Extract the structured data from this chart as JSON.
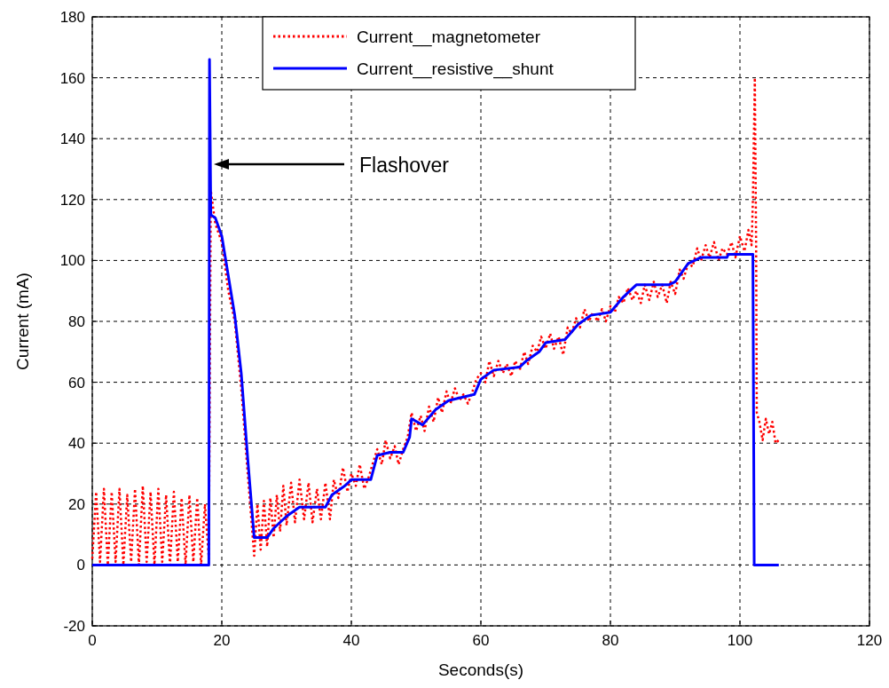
{
  "chart_data": {
    "type": "line",
    "xlabel": "Seconds(s)",
    "ylabel": "Current (mA)",
    "xlim": [
      0,
      120
    ],
    "ylim": [
      -20,
      180
    ],
    "xticks": [
      0,
      20,
      40,
      60,
      80,
      100,
      120
    ],
    "yticks": [
      -20,
      0,
      20,
      40,
      60,
      80,
      100,
      120,
      140,
      160,
      180
    ],
    "grid": true,
    "legend": "top",
    "marker": "none",
    "annotations": [
      "Flashover"
    ],
    "series": [
      {
        "name": "Current__magnetometer",
        "color": "#ff0000",
        "line_style": "dotted",
        "x": [
          0,
          0.6,
          1.2,
          1.8,
          2.4,
          3,
          3.6,
          4.2,
          4.8,
          5.4,
          6,
          6.6,
          7.2,
          7.8,
          8.4,
          9,
          9.6,
          10.2,
          10.8,
          11.4,
          12,
          12.6,
          13.2,
          13.8,
          14.4,
          15,
          15.6,
          16.2,
          16.8,
          17.4,
          18,
          18.3,
          19,
          20,
          21,
          22,
          23,
          24,
          25,
          25.5,
          26,
          26.5,
          27,
          27.5,
          28,
          28.5,
          29,
          29.5,
          30,
          30.7,
          31.3,
          32,
          32.7,
          33.4,
          34,
          34.7,
          35.3,
          36,
          36.7,
          37.3,
          38,
          38.7,
          39.4,
          40,
          40.7,
          41.3,
          42,
          42.7,
          43.4,
          44,
          44.7,
          45.3,
          46,
          46.7,
          47.3,
          48,
          48.7,
          49.3,
          50,
          50.7,
          51.3,
          52,
          52.7,
          53.4,
          54,
          54.7,
          55.3,
          56,
          56.7,
          57.3,
          58,
          58.7,
          59.3,
          60,
          60.7,
          61.3,
          62,
          62.7,
          63.4,
          64,
          64.7,
          65.3,
          66,
          66.7,
          67.3,
          68,
          68.7,
          69.3,
          70,
          70.7,
          71.3,
          72,
          72.7,
          73.4,
          74,
          74.7,
          75.3,
          76,
          76.7,
          77.3,
          78,
          78.7,
          79.3,
          80,
          80.7,
          81.3,
          82,
          82.7,
          83.4,
          84,
          84.7,
          85.3,
          86,
          86.7,
          87.3,
          88,
          88.7,
          89.3,
          90,
          90.7,
          91.3,
          92,
          92.7,
          93.4,
          94,
          94.7,
          95.3,
          96,
          96.7,
          97.3,
          98,
          98.7,
          99.3,
          100,
          100.7,
          101.3,
          101.8,
          102,
          102.3,
          102.5,
          102.6,
          103,
          103.5,
          104,
          104.5,
          105,
          105.5,
          106
        ],
        "values": [
          2,
          24,
          1,
          25,
          0,
          24,
          1,
          25,
          0,
          23,
          1,
          25,
          0,
          26,
          1,
          24,
          0,
          25,
          1,
          23,
          0,
          24,
          1,
          22,
          0,
          23,
          1,
          22,
          0,
          20,
          2,
          123,
          112,
          106,
          90,
          80,
          58,
          30,
          3,
          20,
          5,
          21,
          6,
          22,
          9,
          23,
          11,
          26,
          13,
          27,
          14,
          28,
          15,
          27,
          14,
          25,
          15,
          27,
          15,
          28,
          22,
          32,
          24,
          30,
          26,
          33,
          25,
          29,
          34,
          38,
          33,
          41,
          35,
          39,
          33,
          38,
          42,
          50,
          44,
          49,
          44,
          52,
          47,
          55,
          50,
          57,
          53,
          58,
          54,
          56,
          53,
          57,
          61,
          63,
          60,
          67,
          62,
          67,
          63,
          66,
          62,
          67,
          64,
          70,
          66,
          72,
          70,
          75,
          71,
          76,
          71,
          75,
          69,
          78,
          76,
          81,
          78,
          84,
          80,
          83,
          80,
          84,
          80,
          85,
          83,
          88,
          86,
          91,
          87,
          90,
          86,
          92,
          87,
          93,
          88,
          92,
          86,
          93,
          89,
          97,
          94,
          99,
          98,
          104,
          100,
          105,
          101,
          106,
          100,
          104,
          102,
          106,
          101,
          108,
          103,
          110,
          105,
          120,
          160,
          104,
          50,
          47,
          41,
          48,
          43,
          47,
          40,
          41
        ]
      },
      {
        "name": "Current__resistive__shunt",
        "color": "#0000ff",
        "line_style": "solid",
        "x": [
          0,
          18,
          18.1,
          18.3,
          19,
          20,
          21,
          22,
          23,
          24,
          25,
          27,
          28,
          30,
          32,
          36,
          37,
          39,
          40,
          43,
          44,
          46,
          48,
          49,
          49.3,
          51,
          53,
          55,
          57,
          59,
          60,
          62,
          66,
          67,
          69,
          70,
          73,
          75,
          77,
          80,
          82,
          83,
          84,
          89,
          90,
          91,
          92,
          94,
          98,
          98.2,
          102,
          102.2,
          106
        ],
        "values": [
          0,
          0,
          166,
          115,
          114,
          108,
          95,
          82,
          63,
          35,
          9,
          9,
          12,
          16,
          19,
          19,
          23,
          26,
          28,
          28,
          36,
          37,
          37,
          42,
          48,
          46,
          51,
          54,
          55,
          56,
          61,
          64,
          65,
          67,
          70,
          73,
          74,
          79,
          82,
          83,
          88,
          90,
          92,
          92,
          93,
          96,
          99,
          101,
          101,
          102,
          102,
          0,
          0
        ]
      }
    ]
  }
}
